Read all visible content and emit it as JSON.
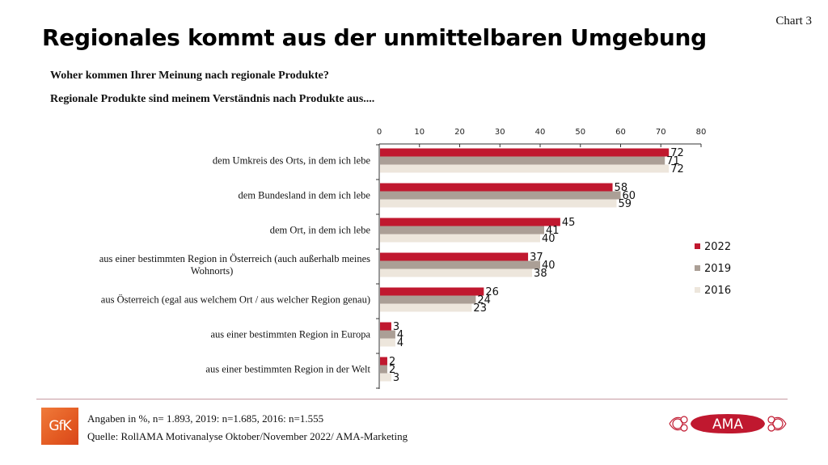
{
  "header": {
    "chart_number": "Chart 3",
    "title": "Regionales kommt aus der unmittelbaren Umgebung",
    "question": "Woher kommen Ihrer Meinung nach regionale Produkte?",
    "subquestion": "Regionale Produkte sind meinem Verständnis nach Produkte aus...."
  },
  "footer": {
    "note": "Angaben in %, n= 1.893, 2019: n=1.685, 2016: n=1.555",
    "source": "Quelle: RollAMA Motivanalyse Oktober/November 2022/ AMA-Marketing",
    "gfk_logo_text": "GfK",
    "ama_logo_text": "AMA"
  },
  "colors": {
    "2022": "#c0182f",
    "2019": "#ab9f96",
    "2016": "#ede6dc",
    "brand_red": "#c0182f"
  },
  "chart_data": {
    "type": "bar",
    "orientation": "horizontal",
    "title": "Regionales kommt aus der unmittelbaren Umgebung",
    "xlabel": "",
    "ylabel": "",
    "xlim": [
      0,
      80
    ],
    "x_ticks": [
      0,
      10,
      20,
      30,
      40,
      50,
      60,
      70,
      80
    ],
    "x_axis_position": "top",
    "grid": false,
    "legend_position": "right",
    "categories": [
      [
        "dem Umkreis des Orts, in dem ich lebe"
      ],
      [
        "dem Bundesland in dem ich lebe"
      ],
      [
        "dem Ort, in dem ich lebe"
      ],
      [
        "aus einer bestimmten Region in Österreich (auch außerhalb meines",
        "Wohnorts)"
      ],
      [
        "aus Österreich (egal aus welchem Ort / aus welcher Region genau)"
      ],
      [
        "aus einer bestimmten Region in Europa"
      ],
      [
        "aus einer bestimmten Region in der Welt"
      ]
    ],
    "series": [
      {
        "name": "2022",
        "values": [
          72,
          58,
          45,
          37,
          26,
          3,
          2
        ]
      },
      {
        "name": "2019",
        "values": [
          71,
          60,
          41,
          40,
          24,
          4,
          2
        ]
      },
      {
        "name": "2016",
        "values": [
          72,
          59,
          40,
          38,
          23,
          4,
          3
        ]
      }
    ]
  }
}
